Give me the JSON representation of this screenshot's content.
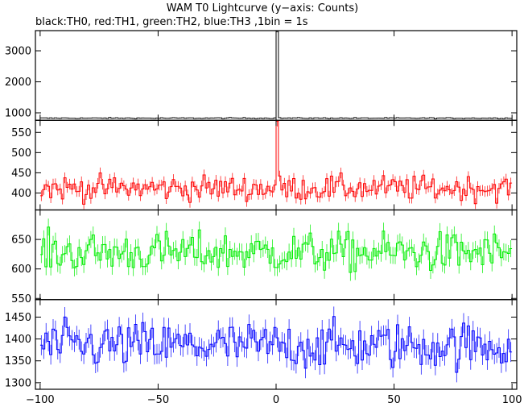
{
  "chart_data": {
    "type": "line",
    "title": "WAM T0 Lightcurve (y−axis: Counts)",
    "subtitle": "black:TH0, red:TH1, green:TH2, blue:TH3 ,1bin = 1s",
    "x_range": [
      -102,
      102
    ],
    "x_ticks": [
      -100,
      -50,
      0,
      50,
      100
    ],
    "x_tick_labels": [
      "−100",
      "−50",
      "0",
      "50",
      "100"
    ],
    "bin_seconds": 1,
    "panels": [
      {
        "name": "TH0",
        "color": "#000000",
        "ylim": [
          760,
          3650
        ],
        "y_ticks": [
          1000,
          2000,
          3000
        ],
        "baseline": 830,
        "noise": 12,
        "peak": {
          "x": 0,
          "value": 3620
        }
      },
      {
        "name": "TH1",
        "color": "#ff0000",
        "ylim": [
          358,
          580
        ],
        "y_ticks": [
          400,
          450,
          500,
          550
        ],
        "baseline": 412,
        "noise": 22,
        "peak": {
          "x": 0,
          "value": 578
        }
      },
      {
        "name": "TH2",
        "color": "#00ee00",
        "ylim": [
          548,
          700
        ],
        "y_ticks": [
          550,
          600,
          650
        ],
        "baseline": 628,
        "noise": 24,
        "peak": null
      },
      {
        "name": "TH3",
        "color": "#0000ff",
        "ylim": [
          1285,
          1490
        ],
        "y_ticks": [
          1300,
          1350,
          1400,
          1450
        ],
        "baseline": 1385,
        "noise": 38,
        "peak": null
      }
    ]
  }
}
